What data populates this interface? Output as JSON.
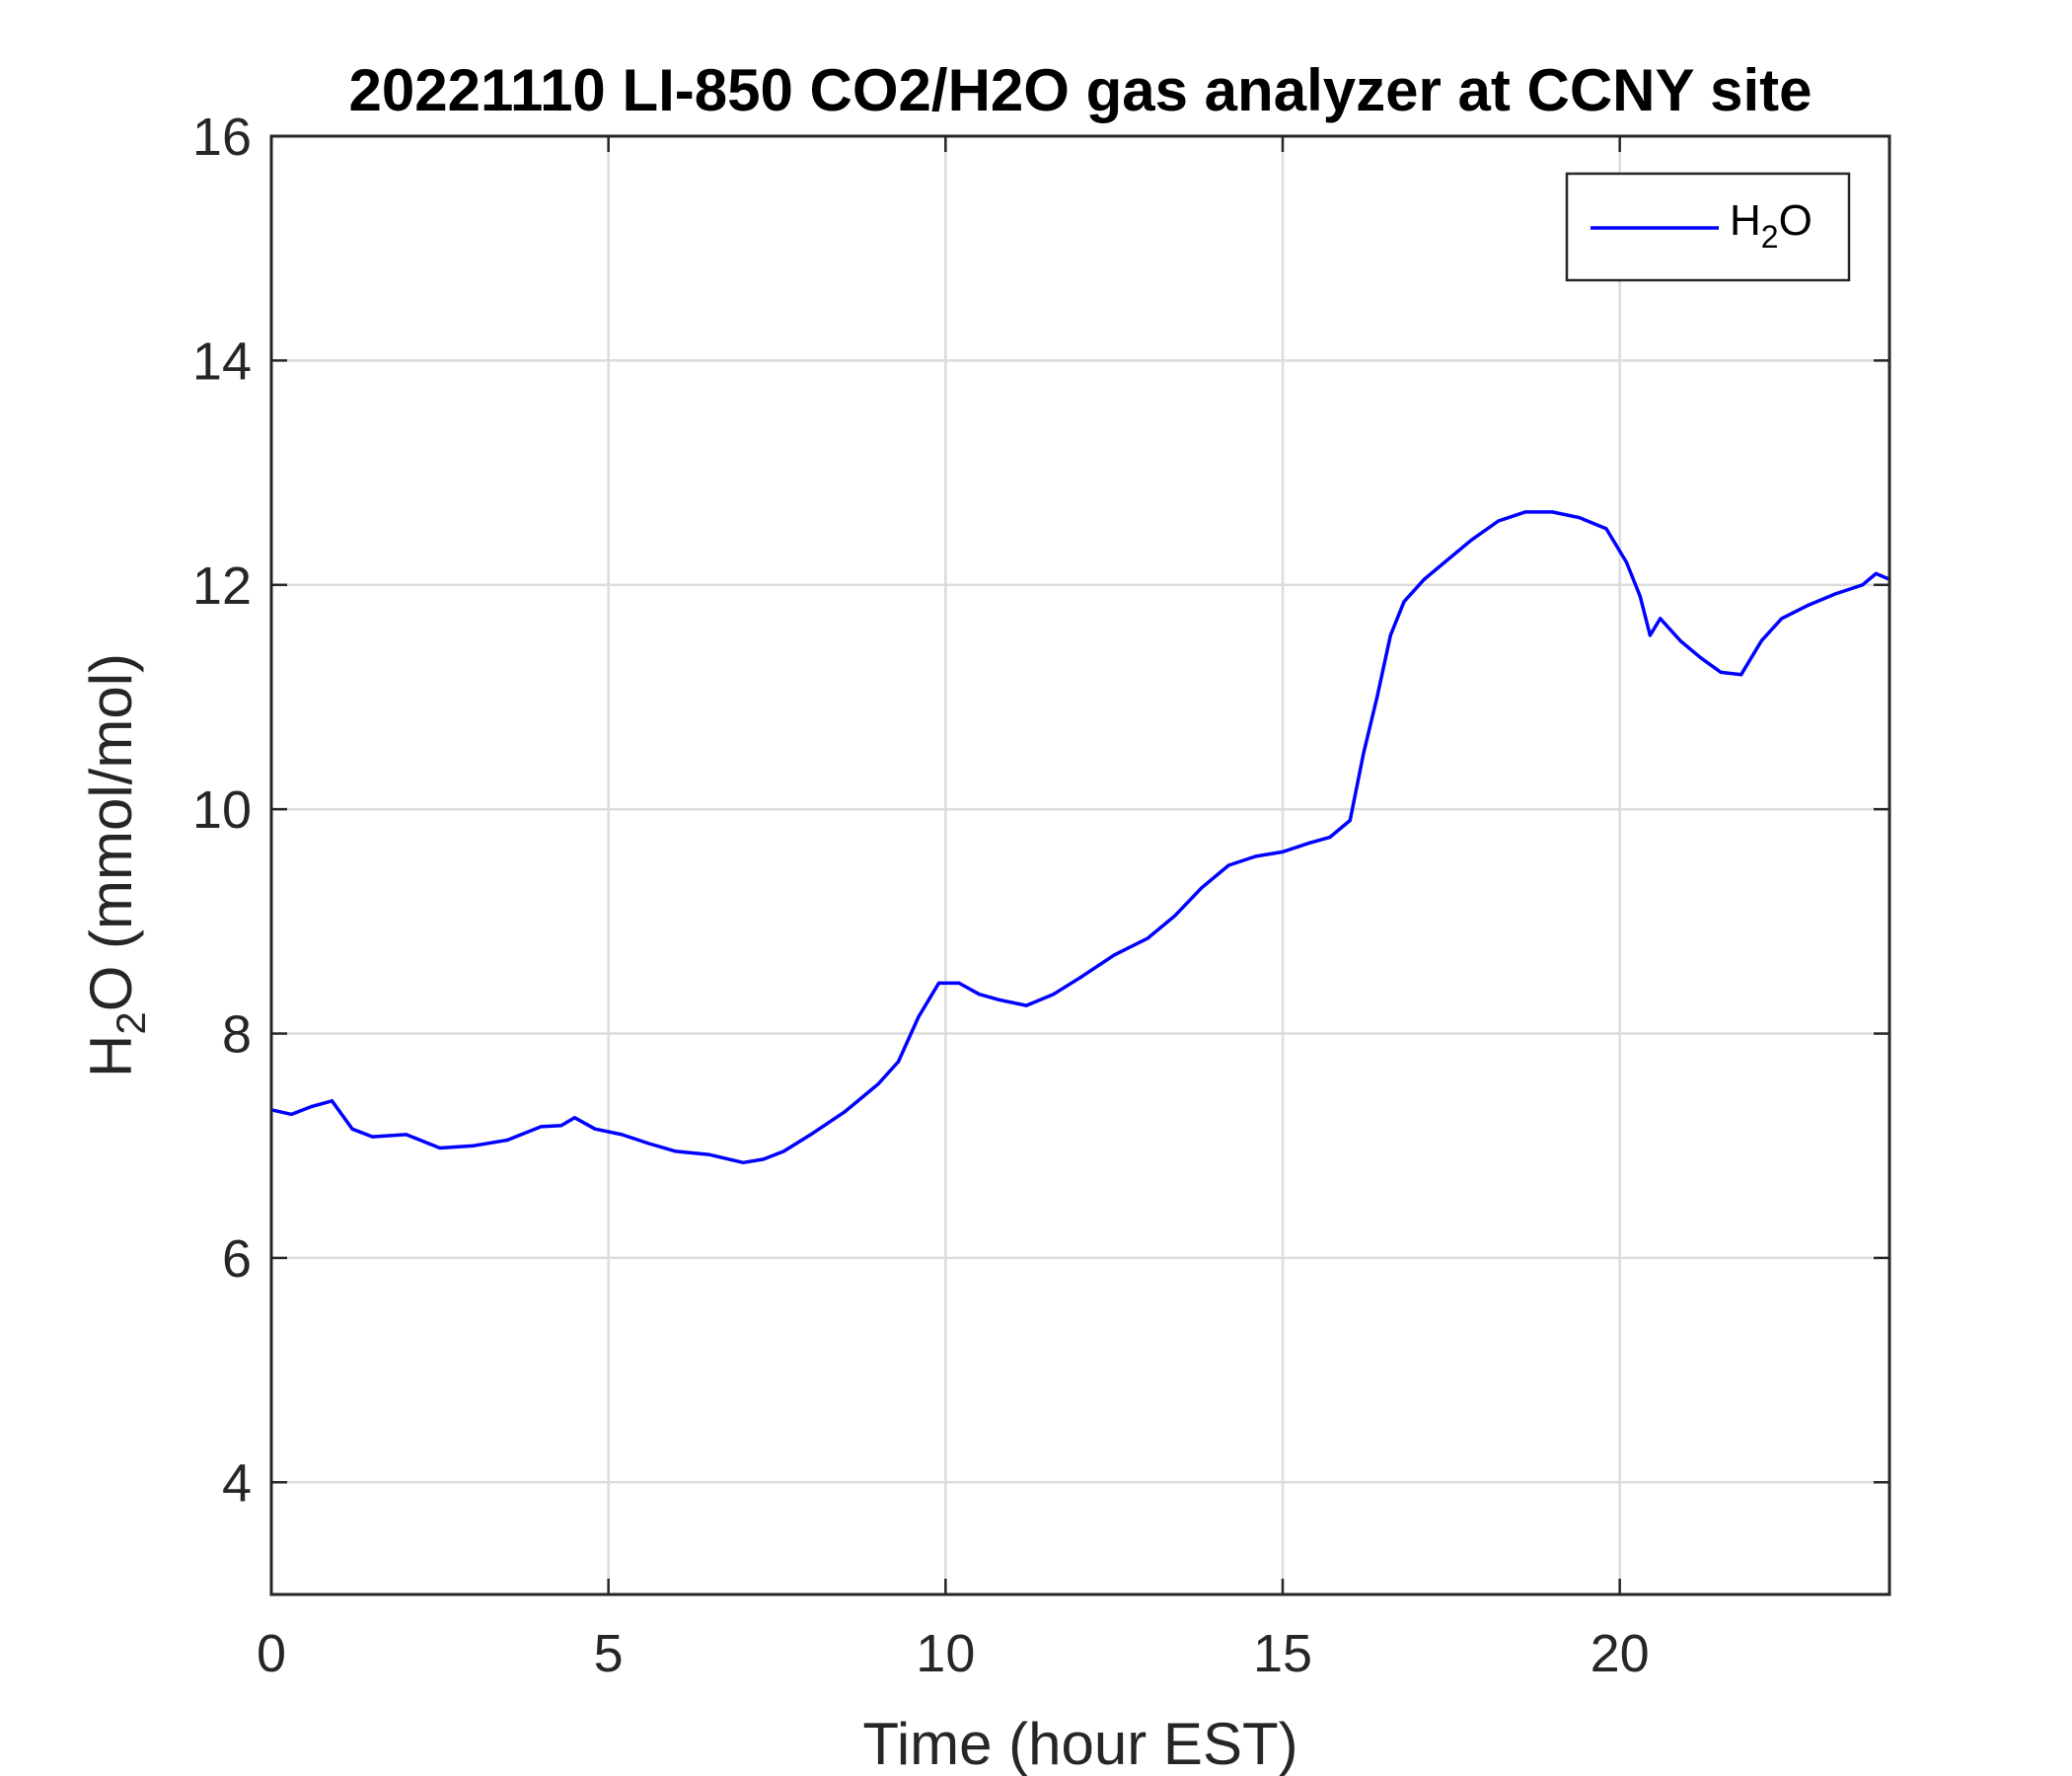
{
  "chart_data": {
    "type": "line",
    "title": "20221110 LI-850 CO2/H2O gas analyzer at CCNY site",
    "xlabel": "Time (hour EST)",
    "ylabel": {
      "main": "H",
      "sub": "2",
      "rest": "O (mmol/mol)"
    },
    "xlim": [
      0,
      24
    ],
    "ylim": [
      3,
      16
    ],
    "xticks": [
      0,
      5,
      10,
      15,
      20
    ],
    "yticks": [
      4,
      6,
      8,
      10,
      12,
      14,
      16
    ],
    "grid": true,
    "legend_position": "top-right",
    "series": [
      {
        "name": {
          "main": "H",
          "sub": "2",
          "rest": "O"
        },
        "color": "#0000ff",
        "x": [
          0,
          0.3,
          0.6,
          0.9,
          1.2,
          1.5,
          2.0,
          2.5,
          3.0,
          3.5,
          4.0,
          4.3,
          4.5,
          4.8,
          5.2,
          5.6,
          6.0,
          6.5,
          7.0,
          7.3,
          7.6,
          8.0,
          8.5,
          9.0,
          9.3,
          9.6,
          9.9,
          10.2,
          10.5,
          10.8,
          11.2,
          11.6,
          12.0,
          12.5,
          13.0,
          13.4,
          13.8,
          14.2,
          14.6,
          15.0,
          15.4,
          15.7,
          16.0,
          16.2,
          16.4,
          16.6,
          16.8,
          17.1,
          17.4,
          17.8,
          18.2,
          18.6,
          19.0,
          19.4,
          19.8,
          20.1,
          20.3,
          20.45,
          20.6,
          20.9,
          21.2,
          21.5,
          21.8,
          22.1,
          22.4,
          22.8,
          23.2,
          23.6,
          23.8,
          24.0
        ],
        "y": [
          7.32,
          7.28,
          7.35,
          7.4,
          7.15,
          7.08,
          7.1,
          6.98,
          7.0,
          7.05,
          7.17,
          7.18,
          7.25,
          7.15,
          7.1,
          7.02,
          6.95,
          6.92,
          6.85,
          6.88,
          6.95,
          7.1,
          7.3,
          7.55,
          7.75,
          8.15,
          8.45,
          8.45,
          8.35,
          8.3,
          8.25,
          8.35,
          8.5,
          8.7,
          8.85,
          9.05,
          9.3,
          9.5,
          9.58,
          9.62,
          9.7,
          9.75,
          9.9,
          10.5,
          11.0,
          11.55,
          11.85,
          12.05,
          12.2,
          12.4,
          12.57,
          12.65,
          12.65,
          12.6,
          12.5,
          12.2,
          11.9,
          11.55,
          11.7,
          11.5,
          11.35,
          11.22,
          11.2,
          11.5,
          11.7,
          11.82,
          11.92,
          12.0,
          12.1,
          12.05
        ]
      }
    ]
  }
}
